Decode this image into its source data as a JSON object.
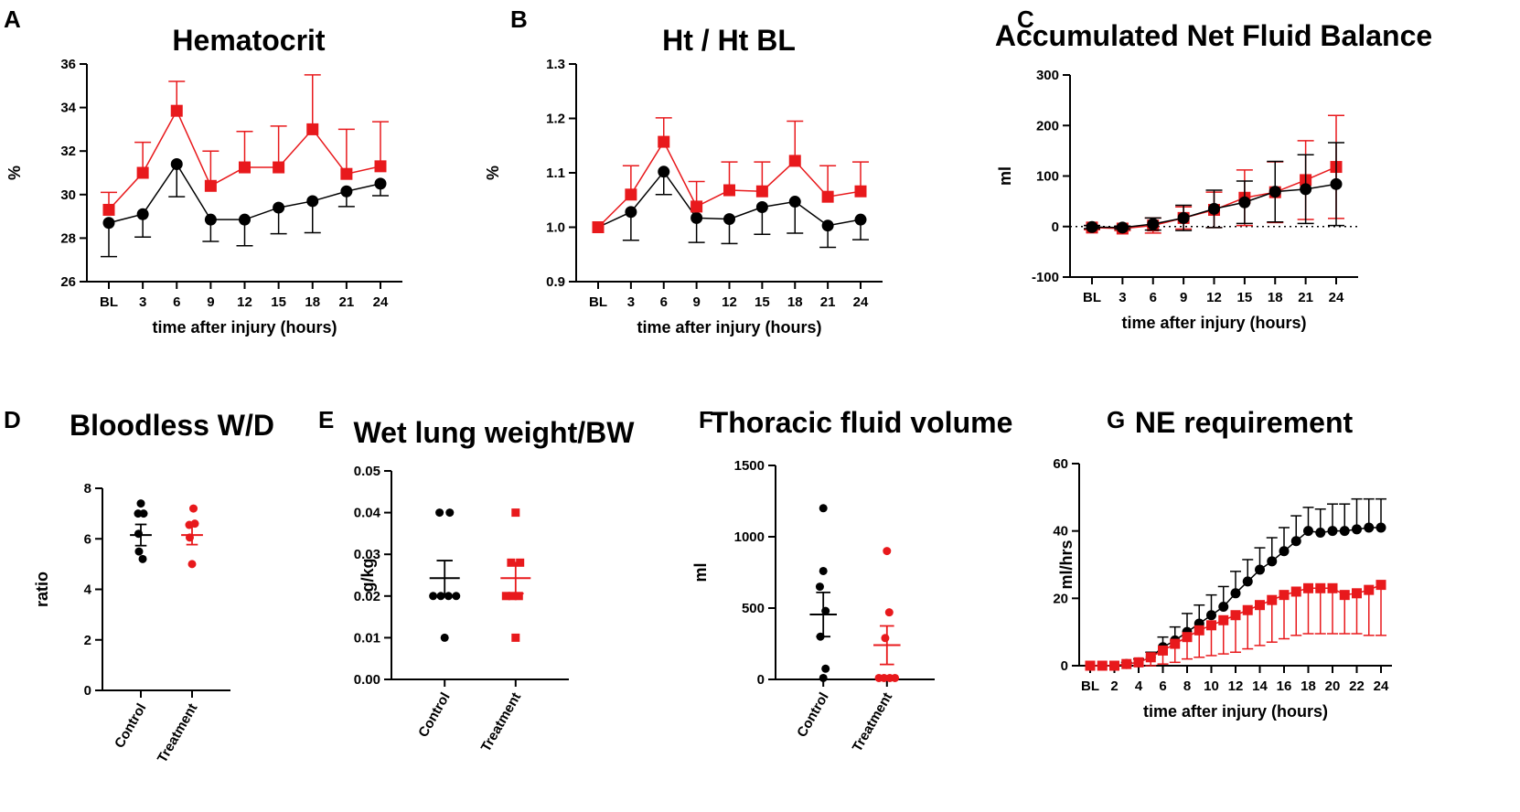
{
  "colors": {
    "control": "#000000",
    "treatment": "#e8191c"
  },
  "chart_data": [
    {
      "panel": "A",
      "type": "line",
      "title": "Hematocrit",
      "xlabel": "time after injury (hours)",
      "ylabel": "%",
      "categories": [
        "BL",
        "3",
        "6",
        "9",
        "12",
        "15",
        "18",
        "21",
        "24"
      ],
      "ylim": [
        26,
        36
      ],
      "yticks": [
        "26",
        "28",
        "30",
        "32",
        "34",
        "36"
      ],
      "series": [
        {
          "name": "Control",
          "marker": "circle",
          "error_dir": "down",
          "values": [
            28.7,
            29.1,
            31.4,
            28.85,
            28.85,
            29.4,
            29.7,
            30.15,
            30.5
          ],
          "errors": [
            1.55,
            1.05,
            1.5,
            1.0,
            1.2,
            1.2,
            1.45,
            0.7,
            0.55
          ]
        },
        {
          "name": "Treatment",
          "marker": "square",
          "error_dir": "up",
          "values": [
            29.3,
            31.0,
            33.85,
            30.4,
            31.25,
            31.25,
            33.0,
            30.95,
            31.3
          ],
          "errors": [
            0.8,
            1.4,
            1.35,
            1.6,
            1.65,
            1.9,
            2.5,
            2.05,
            2.05
          ]
        }
      ]
    },
    {
      "panel": "B",
      "type": "line",
      "title": "Ht / Ht BL",
      "xlabel": "time after injury (hours)",
      "ylabel": "%",
      "categories": [
        "BL",
        "3",
        "6",
        "9",
        "12",
        "15",
        "18",
        "21",
        "24"
      ],
      "ylim": [
        0.9,
        1.3
      ],
      "yticks": [
        "0.9",
        "1.0",
        "1.1",
        "1.2",
        "1.3"
      ],
      "series": [
        {
          "name": "Control",
          "marker": "circle",
          "error_dir": "down",
          "values": [
            1.0,
            1.028,
            1.102,
            1.017,
            1.015,
            1.037,
            1.047,
            1.003,
            1.014
          ],
          "errors": [
            0.0,
            0.052,
            0.042,
            0.045,
            0.045,
            0.05,
            0.058,
            0.04,
            0.037
          ]
        },
        {
          "name": "Treatment",
          "marker": "square",
          "error_dir": "up",
          "values": [
            1.0,
            1.06,
            1.157,
            1.038,
            1.068,
            1.066,
            1.122,
            1.056,
            1.066
          ],
          "errors": [
            0.0,
            0.053,
            0.044,
            0.046,
            0.052,
            0.054,
            0.073,
            0.057,
            0.054
          ]
        }
      ]
    },
    {
      "panel": "C",
      "type": "line",
      "title": "Accumulated Net Fluid Balance",
      "xlabel": "time after injury (hours)",
      "ylabel": "ml",
      "categories": [
        "BL",
        "3",
        "6",
        "9",
        "12",
        "15",
        "18",
        "21",
        "24"
      ],
      "ylim": [
        -100,
        300
      ],
      "yticks": [
        "-100",
        "0",
        "100",
        "200",
        "300"
      ],
      "zero_line": true,
      "series": [
        {
          "name": "Treatment",
          "marker": "square",
          "error_dir": "both",
          "values": [
            -2,
            -4,
            2,
            17,
            33,
            57,
            68,
            92,
            118
          ],
          "errors": [
            4,
            4,
            15,
            22,
            35,
            55,
            60,
            78,
            102
          ]
        },
        {
          "name": "Control",
          "marker": "circle",
          "error_dir": "both",
          "values": [
            -1,
            -2,
            5,
            17,
            35,
            48,
            69,
            74,
            84
          ],
          "errors": [
            3,
            3,
            12,
            25,
            37,
            42,
            60,
            68,
            82
          ]
        }
      ]
    },
    {
      "panel": "D",
      "type": "scatter",
      "title": "Bloodless W/D",
      "ylabel": "ratio",
      "categories": [
        "Control",
        "Treatment"
      ],
      "ylim": [
        0,
        8
      ],
      "yticks": [
        "0",
        "2",
        "4",
        "6",
        "8"
      ],
      "groups": [
        {
          "name": "Control",
          "marker": "circle",
          "mean": 6.15,
          "sem": 0.42,
          "points": [
            [
              0.0,
              7.4
            ],
            [
              -0.06,
              7.0
            ],
            [
              0.06,
              7.0
            ],
            [
              -0.05,
              6.2
            ],
            [
              -0.04,
              5.5
            ],
            [
              0.04,
              5.2
            ]
          ]
        },
        {
          "name": "Treatment",
          "marker": "circle",
          "mean": 6.15,
          "sem": 0.38,
          "points": [
            [
              0.03,
              7.2
            ],
            [
              -0.06,
              6.55
            ],
            [
              0.06,
              6.6
            ],
            [
              -0.05,
              6.05
            ],
            [
              0.0,
              5.0
            ]
          ]
        }
      ]
    },
    {
      "panel": "E",
      "type": "scatter",
      "title": "Wet lung weight/BW",
      "ylabel": "g/kg",
      "categories": [
        "Control",
        "Treatment"
      ],
      "ylim": [
        0,
        0.05
      ],
      "yticks": [
        "0.00",
        "0.01",
        "0.02",
        "0.03",
        "0.04",
        "0.05"
      ],
      "groups": [
        {
          "name": "Control",
          "marker": "circle",
          "mean": 0.0243,
          "sem": 0.0042,
          "points": [
            [
              -0.08,
              0.04
            ],
            [
              0.08,
              0.04
            ],
            [
              -0.18,
              0.02
            ],
            [
              -0.06,
              0.02
            ],
            [
              0.06,
              0.02
            ],
            [
              0.18,
              0.02
            ],
            [
              0.0,
              0.01
            ]
          ]
        },
        {
          "name": "Treatment",
          "marker": "square",
          "mean": 0.0243,
          "sem": 0.0037,
          "points": [
            [
              0.0,
              0.04
            ],
            [
              -0.07,
              0.028
            ],
            [
              0.07,
              0.028
            ],
            [
              -0.15,
              0.02
            ],
            [
              -0.05,
              0.02
            ],
            [
              0.05,
              0.02
            ],
            [
              0.0,
              0.01
            ]
          ]
        }
      ]
    },
    {
      "panel": "F",
      "type": "scatter",
      "title": "Thoracic fluid volume",
      "ylabel": "ml",
      "categories": [
        "Control",
        "Treatment"
      ],
      "ylim": [
        0,
        1500
      ],
      "yticks": [
        "0",
        "500",
        "1000",
        "1500"
      ],
      "zero_line": true,
      "groups": [
        {
          "name": "Control",
          "marker": "circle",
          "mean": 455,
          "sem": 155,
          "points": [
            [
              0.0,
              1200
            ],
            [
              0.0,
              760
            ],
            [
              -0.06,
              650
            ],
            [
              0.04,
              480
            ],
            [
              -0.05,
              300
            ],
            [
              0.04,
              75
            ],
            [
              0.0,
              10
            ]
          ]
        },
        {
          "name": "Treatment",
          "marker": "circle",
          "mean": 240,
          "sem": 135,
          "points": [
            [
              0.0,
              900
            ],
            [
              0.04,
              470
            ],
            [
              -0.03,
              290
            ],
            [
              -0.14,
              10
            ],
            [
              -0.05,
              10
            ],
            [
              0.05,
              10
            ],
            [
              0.14,
              10
            ]
          ]
        }
      ]
    },
    {
      "panel": "G",
      "type": "line",
      "title": "NE requirement",
      "xlabel": "time after injury (hours)",
      "ylabel": "ml/hrs",
      "x": [
        0,
        1,
        2,
        3,
        4,
        5,
        6,
        7,
        8,
        9,
        10,
        11,
        12,
        13,
        14,
        15,
        16,
        17,
        18,
        19,
        20,
        21,
        22,
        23,
        24
      ],
      "xtick_values": [
        0,
        2,
        4,
        6,
        8,
        10,
        12,
        14,
        16,
        18,
        20,
        22,
        24
      ],
      "xtick_labels": [
        "BL",
        "2",
        "4",
        "6",
        "8",
        "10",
        "12",
        "14",
        "16",
        "18",
        "20",
        "22",
        "24"
      ],
      "ylim": [
        0,
        60
      ],
      "yticks": [
        "0",
        "20",
        "40",
        "60"
      ],
      "series": [
        {
          "name": "Control",
          "marker": "circle",
          "error_dir": "up",
          "values": [
            0,
            0,
            0,
            0.5,
            1,
            2.5,
            5.5,
            7.5,
            10,
            12.5,
            15,
            17.5,
            21.5,
            25,
            28.5,
            31,
            34,
            37,
            40,
            39.5,
            40,
            40,
            40.5,
            41,
            41
          ],
          "errors": [
            0,
            0,
            0,
            0.5,
            1,
            1.5,
            3,
            4,
            5.5,
            5.5,
            6,
            6,
            6.5,
            6.5,
            6.5,
            7,
            7,
            7.5,
            7,
            7,
            8,
            8,
            9,
            8.5,
            8.5
          ]
        },
        {
          "name": "Treatment",
          "marker": "square",
          "error_dir": "down",
          "values": [
            0,
            0,
            0,
            0.5,
            1,
            2.5,
            4.5,
            6.5,
            8.5,
            10.5,
            12,
            13.5,
            15,
            16.5,
            18,
            19.5,
            21,
            22,
            23,
            23,
            23,
            21,
            21.5,
            22.5,
            24
          ],
          "errors": [
            0,
            0,
            0,
            0.3,
            1,
            2.5,
            4,
            5.5,
            6.5,
            8,
            9,
            10,
            11,
            11.5,
            12,
            12.5,
            13,
            13,
            13.5,
            13.5,
            13.5,
            11.5,
            12,
            13.5,
            15
          ]
        }
      ]
    }
  ]
}
